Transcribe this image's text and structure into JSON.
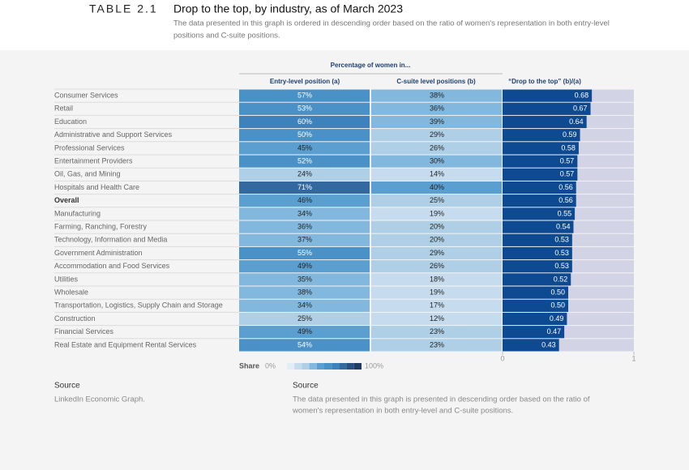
{
  "header": {
    "label": "TABLE 2.1",
    "title": "Drop to the top, by industry, as of March 2023",
    "subtitle_lines": [
      "The data presented in this graph is ordered in descending order based on the ratio of women's representation in both entry-level",
      "positions and C-suite positions."
    ]
  },
  "table": {
    "group_header": "Percentage of women in...",
    "columns": [
      "Entry-level position (a)",
      "C-suite level positions (b)",
      "“Drop to the top” (b)/(a)"
    ],
    "rows": [
      {
        "label": "Consumer Services",
        "entry": 57,
        "entry_label": "57%",
        "csuite": 38,
        "csuite_label": "38%",
        "drop": 0.68,
        "drop_label": "0.68"
      },
      {
        "label": "Retail",
        "entry": 53,
        "entry_label": "53%",
        "csuite": 36,
        "csuite_label": "36%",
        "drop": 0.67,
        "drop_label": "0.67"
      },
      {
        "label": "Education",
        "entry": 60,
        "entry_label": "60%",
        "csuite": 39,
        "csuite_label": "39%",
        "drop": 0.64,
        "drop_label": "0.64"
      },
      {
        "label": "Administrative and Support Services",
        "entry": 50,
        "entry_label": "50%",
        "csuite": 29,
        "csuite_label": "29%",
        "drop": 0.59,
        "drop_label": "0.59"
      },
      {
        "label": "Professional Services",
        "entry": 45,
        "entry_label": "45%",
        "csuite": 26,
        "csuite_label": "26%",
        "drop": 0.58,
        "drop_label": "0.58"
      },
      {
        "label": "Entertainment Providers",
        "entry": 52,
        "entry_label": "52%",
        "csuite": 30,
        "csuite_label": "30%",
        "drop": 0.57,
        "drop_label": "0.57"
      },
      {
        "label": "Oil, Gas, and Mining",
        "entry": 24,
        "entry_label": "24%",
        "csuite": 14,
        "csuite_label": "14%",
        "drop": 0.57,
        "drop_label": "0.57"
      },
      {
        "label": "Hospitals and Health Care",
        "entry": 71,
        "entry_label": "71%",
        "csuite": 40,
        "csuite_label": "40%",
        "drop": 0.56,
        "drop_label": "0.56"
      },
      {
        "label": "Overall",
        "bold": true,
        "entry": 46,
        "entry_label": "46%",
        "csuite": 25,
        "csuite_label": "25%",
        "drop": 0.56,
        "drop_label": "0.56"
      },
      {
        "label": "Manufacturing",
        "entry": 34,
        "entry_label": "34%",
        "csuite": 19,
        "csuite_label": "19%",
        "drop": 0.55,
        "drop_label": "0.55"
      },
      {
        "label": "Farming, Ranching, Forestry",
        "entry": 36,
        "entry_label": "36%",
        "csuite": 20,
        "csuite_label": "20%",
        "drop": 0.54,
        "drop_label": "0.54"
      },
      {
        "label": "Technology, Information and Media",
        "entry": 37,
        "entry_label": "37%",
        "csuite": 20,
        "csuite_label": "20%",
        "drop": 0.53,
        "drop_label": "0.53"
      },
      {
        "label": "Government Administration",
        "entry": 55,
        "entry_label": "55%",
        "csuite": 29,
        "csuite_label": "29%",
        "drop": 0.53,
        "drop_label": "0.53"
      },
      {
        "label": "Accommodation and Food Services",
        "entry": 49,
        "entry_label": "49%",
        "csuite": 26,
        "csuite_label": "26%",
        "drop": 0.53,
        "drop_label": "0.53"
      },
      {
        "label": "Utilities",
        "entry": 35,
        "entry_label": "35%",
        "csuite": 18,
        "csuite_label": "18%",
        "drop": 0.52,
        "drop_label": "0.52"
      },
      {
        "label": "Wholesale",
        "entry": 38,
        "entry_label": "38%",
        "csuite": 19,
        "csuite_label": "19%",
        "drop": 0.5,
        "drop_label": "0.50"
      },
      {
        "label": "Transportation, Logistics, Supply Chain and Storage",
        "entry": 34,
        "entry_label": "34%",
        "csuite": 17,
        "csuite_label": "17%",
        "drop": 0.5,
        "drop_label": "0.50"
      },
      {
        "label": "Construction",
        "entry": 25,
        "entry_label": "25%",
        "csuite": 12,
        "csuite_label": "12%",
        "drop": 0.49,
        "drop_label": "0.49"
      },
      {
        "label": "Financial Services",
        "entry": 49,
        "entry_label": "49%",
        "csuite": 23,
        "csuite_label": "23%",
        "drop": 0.47,
        "drop_label": "0.47"
      },
      {
        "label": "Real Estate and Equipment Rental Services",
        "entry": 54,
        "entry_label": "54%",
        "csuite": 23,
        "csuite_label": "23%",
        "drop": 0.43,
        "drop_label": "0.43"
      }
    ],
    "drop_xlim": [
      0,
      1
    ],
    "drop_xticks": [
      0,
      1
    ],
    "bar_color": "#0e4a92",
    "bar_track_color": "#d3d3e6",
    "share_colors": [
      "#e3edf6",
      "#c6dcee",
      "#aecfe6",
      "#82b8dd",
      "#5b9fd0",
      "#4a91c7",
      "#3d82bd",
      "#33699f",
      "#284f82",
      "#1f3a63"
    ]
  },
  "legend": {
    "title": "Share",
    "min_label": "0%",
    "max_label": "100%"
  },
  "sources": [
    {
      "title": "Source",
      "lines": [
        "LinkedIn Economic Graph."
      ]
    },
    {
      "title": "Source",
      "lines": [
        "The data presented in this graph is presented in descending order based on the ratio of",
        "women's representation in both entry-level and C-suite positions."
      ]
    }
  ]
}
